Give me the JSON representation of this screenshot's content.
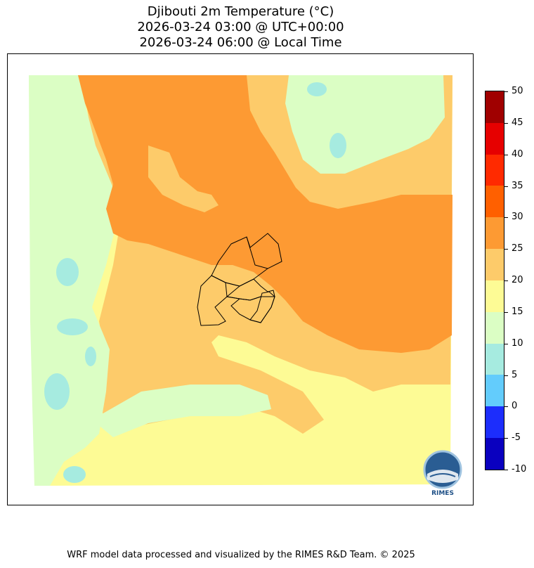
{
  "title": {
    "line1": "Djibouti 2m Temperature (°C)",
    "line2": "2026-03-24 03:00 @ UTC+00:00",
    "line3": "2026-03-24 06:00 @ Local Time"
  },
  "colorbar": {
    "levels": [
      50,
      45,
      40,
      35,
      30,
      25,
      20,
      15,
      10,
      5,
      0,
      -5,
      -10
    ],
    "labels": [
      "50",
      "45",
      "40",
      "35",
      "30",
      "25",
      "20",
      "15",
      "10",
      "5",
      "0",
      "-5",
      "-10"
    ],
    "colors": [
      "#a00000",
      "#e60000",
      "#ff2a00",
      "#ff6000",
      "#fd9a33",
      "#fdcb6a",
      "#fdfb95",
      "#dbfec4",
      "#a6ebe0",
      "#63ccfc",
      "#1c2dfc",
      "#0a00bf"
    ]
  },
  "map": {
    "colors": {
      "warm_orange": "#fd9a33",
      "light_orange": "#fdcb6a",
      "yellow": "#fdfb95",
      "pale_green": "#dbfec4",
      "cyan": "#a6ebe0"
    }
  },
  "logo": {
    "text": "RIMES"
  },
  "footer": {
    "credit": "WRF model data processed and visualized by the RIMES R&D Team. © 2025"
  }
}
